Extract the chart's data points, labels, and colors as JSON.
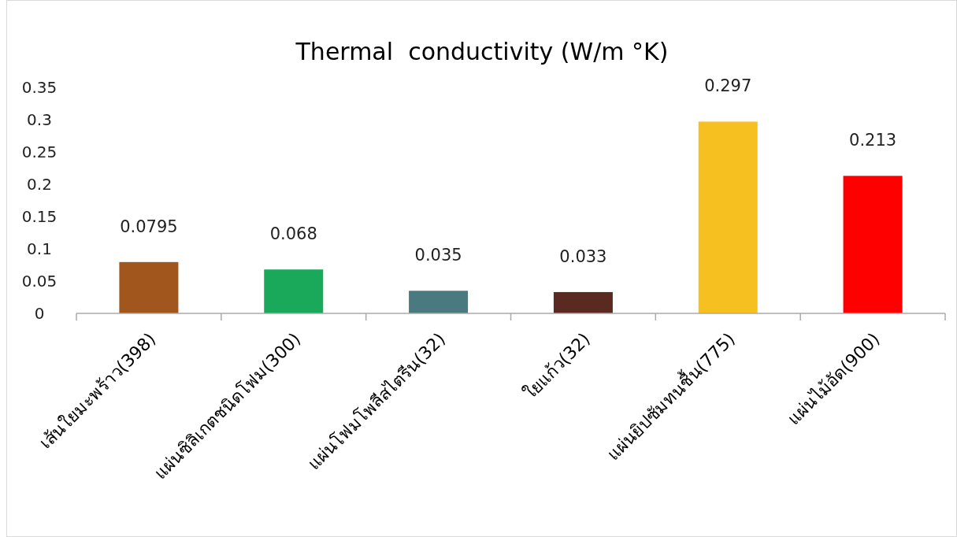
{
  "chart_data": {
    "type": "bar",
    "title": "Thermal  conductivity (W/m °K)",
    "categories": [
      "เส้นใยมะพร้าว(398)",
      "แผ่นซิลิเกตชนิดโฟม(300)",
      "แผ่นโฟมโพลีสไตรีน(32)",
      "ใยแก้ว(32)",
      "แผ่นยิปซัมทนชื้น(775)",
      "แผ่นไม้อัด(900)"
    ],
    "values": [
      0.0795,
      0.068,
      0.035,
      0.033,
      0.297,
      0.213
    ],
    "colors": [
      "#a0561c",
      "#1aa85a",
      "#4a7a80",
      "#5a2a20",
      "#f5c020",
      "#ff0000"
    ],
    "ylim": [
      0,
      0.35
    ],
    "yticks": [
      0,
      0.05,
      0.1,
      0.15,
      0.2,
      0.25,
      0.3,
      0.35
    ],
    "data_labels": true,
    "grid": false
  }
}
